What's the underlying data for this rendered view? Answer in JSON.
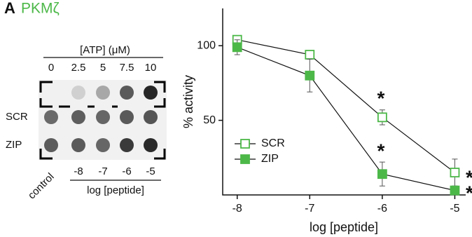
{
  "panel_label": "A",
  "panel_title": "PKMζ",
  "dot_blot": {
    "header": "[ATP] (μM)",
    "atp_labels": [
      "0",
      "2.5",
      "5",
      "7.5",
      "10"
    ],
    "rows": [
      "SCR",
      "ZIP"
    ],
    "control_label": "control",
    "peptide_labels": [
      "-8",
      "-7",
      "-6",
      "-5"
    ],
    "peptide_axis": "log [peptide]"
  },
  "chart_data": {
    "type": "line",
    "x_label": "log [peptide]",
    "y_label": "% activity",
    "x": [
      -8,
      -7,
      -6,
      -5
    ],
    "xlim": [
      -8.2,
      -4.85
    ],
    "ylim": [
      0,
      125
    ],
    "xticks": [
      -8,
      -7,
      -6,
      -5
    ],
    "yticks": [
      50,
      100
    ],
    "legend": "lower-left",
    "series": [
      {
        "name": "SCR",
        "color": "#4cb848",
        "marker": "open",
        "values": [
          104,
          94,
          52,
          15
        ],
        "errors": [
          2.5,
          2.5,
          5,
          9
        ]
      },
      {
        "name": "ZIP",
        "color": "#4cb848",
        "marker": "filled",
        "values": [
          99,
          80,
          14,
          3
        ],
        "errors": [
          5,
          11,
          8,
          3
        ]
      }
    ],
    "annotations": [
      "*",
      "*",
      "*",
      "*"
    ]
  }
}
